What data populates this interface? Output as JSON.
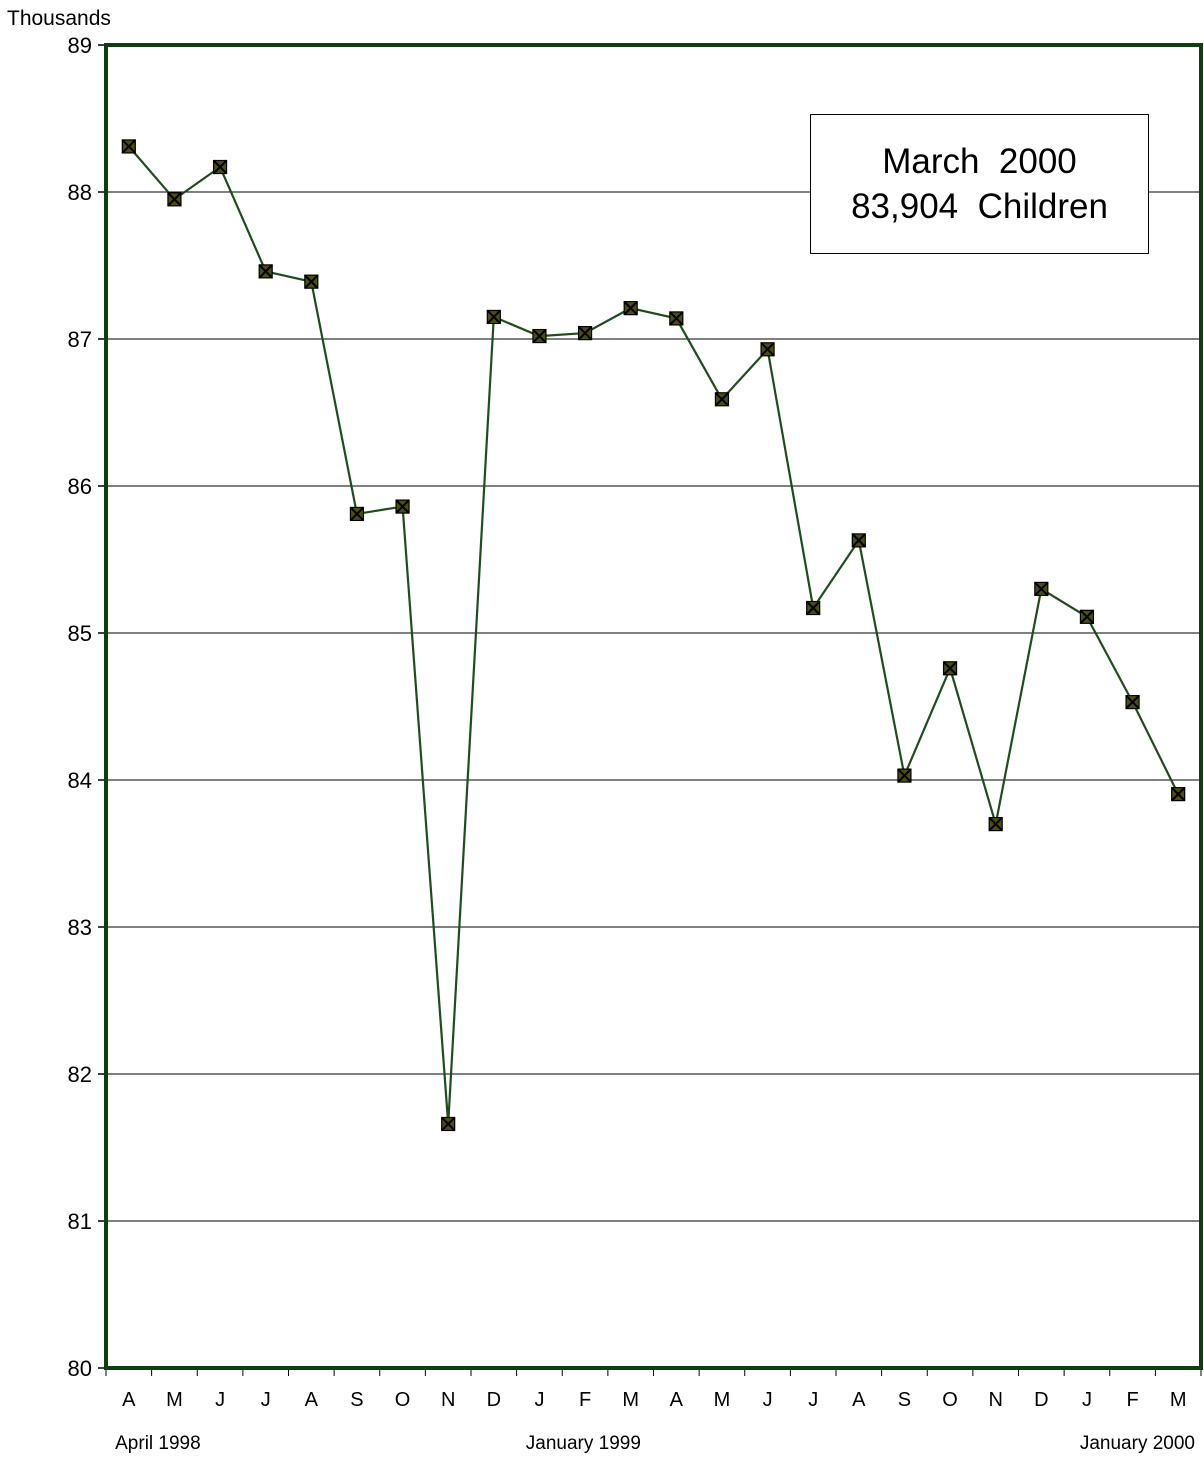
{
  "chart_data": {
    "type": "line",
    "ylabel": "Thousands",
    "ylim": [
      80,
      89
    ],
    "yticks": [
      "80",
      "81",
      "82",
      "83",
      "84",
      "85",
      "86",
      "87",
      "88",
      "89"
    ],
    "grid": "horizontal",
    "categories": [
      "A",
      "M",
      "J",
      "J",
      "A",
      "S",
      "O",
      "N",
      "D",
      "J",
      "F",
      "M",
      "A",
      "M",
      "J",
      "J",
      "A",
      "S",
      "O",
      "N",
      "D",
      "J",
      "F",
      "M"
    ],
    "period_labels": [
      {
        "text": "April 1998",
        "category_index": 0
      },
      {
        "text": "January 1999",
        "category_index": 9
      },
      {
        "text": "January 2000",
        "category_index": 21
      }
    ],
    "series": [
      {
        "values": [
          88.31,
          87.95,
          88.17,
          87.46,
          87.39,
          85.81,
          85.86,
          81.66,
          87.15,
          87.02,
          87.04,
          87.21,
          87.14,
          86.59,
          86.93,
          85.17,
          85.63,
          84.03,
          84.76,
          83.7,
          85.3,
          85.11,
          84.53,
          83.904
        ]
      }
    ],
    "annotation": {
      "line1": "March  2000",
      "line2": "83,904  Children"
    },
    "colors": {
      "line": "#1e4d1e",
      "frame": "#0f3f0f",
      "marker_fill": "#4d4d10",
      "marker_stroke": "#000000",
      "grid": "#000000"
    }
  }
}
